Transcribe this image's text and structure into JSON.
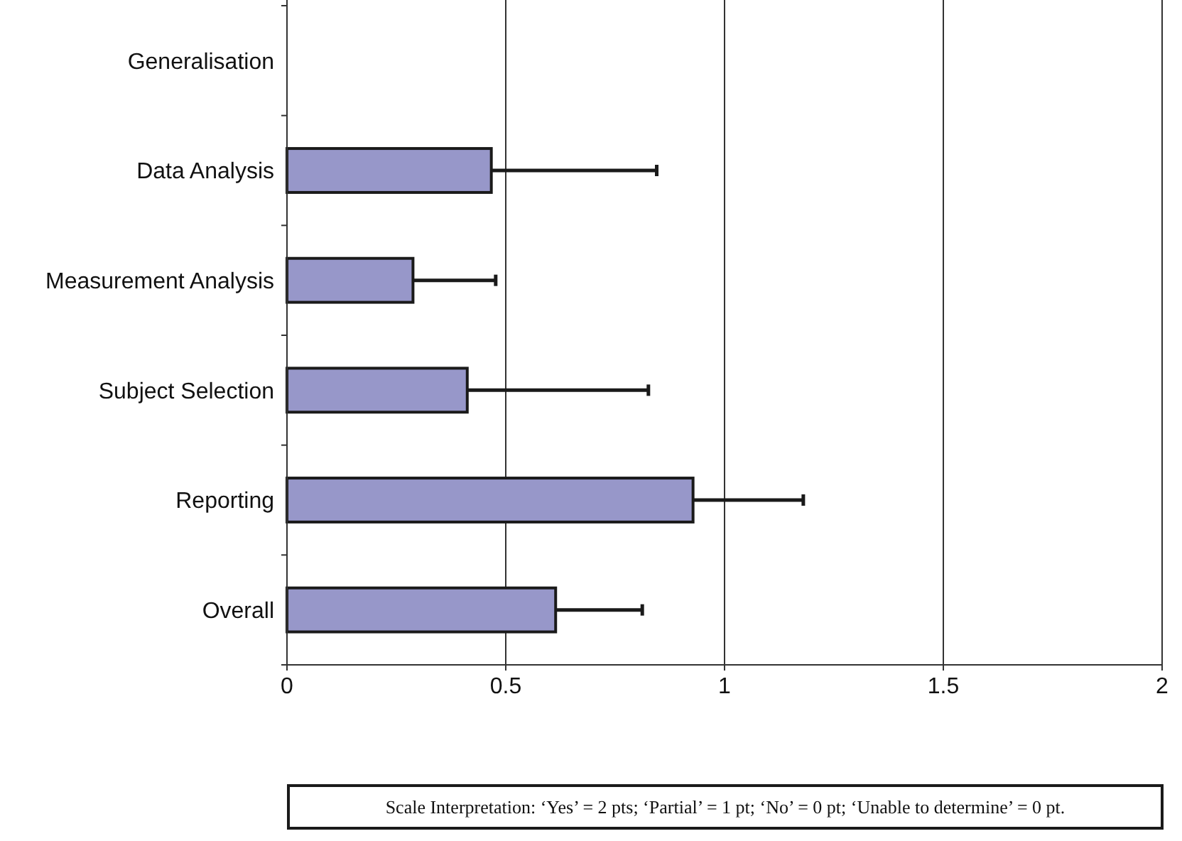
{
  "chart_data": {
    "type": "bar",
    "orientation": "horizontal",
    "categories": [
      "Generalisation",
      "Data Analysis",
      "Measurement Analysis",
      "Subject Selection",
      "Reporting",
      "Overall"
    ],
    "values": [
      0,
      0.467,
      0.288,
      0.412,
      0.928,
      0.614
    ],
    "errors": [
      null,
      [
        0.467,
        0.845
      ],
      [
        0.288,
        0.477
      ],
      [
        0.412,
        0.826
      ],
      [
        0.928,
        1.18
      ],
      [
        0.614,
        0.812
      ]
    ],
    "color": "#9797c9",
    "xlim": [
      0,
      2
    ],
    "xticks": [
      0,
      0.5,
      1,
      1.5,
      2
    ],
    "grid": "x",
    "annotations": [
      "Scale Interpretation: ‘Yes’ = 2 pts; ‘Partial’ = 1 pt; ‘No’ = 0 pt; ‘Unable to determine’ = 0 pt."
    ]
  }
}
